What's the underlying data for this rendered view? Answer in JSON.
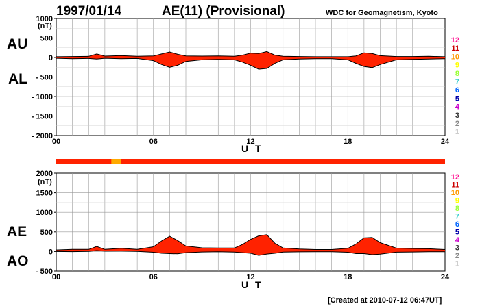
{
  "header": {
    "date": "1997/01/14",
    "title": "AE(11) (Provisional)",
    "source": "WDC for Geomagnetism, Kyoto"
  },
  "footer": {
    "created": "[Created at 2010-07-12 06:47UT]"
  },
  "station_legend": {
    "labels": [
      "12",
      "11",
      "10",
      "9",
      "8",
      "7",
      "6",
      "5",
      "4",
      "3",
      "2",
      "1"
    ],
    "colors": [
      "#ff1493",
      "#cc0000",
      "#ff9900",
      "#ffff00",
      "#99ff33",
      "#33cccc",
      "#0066ff",
      "#0000aa",
      "#cc00cc",
      "#333333",
      "#888888",
      "#cccccc"
    ]
  },
  "station_bar": {
    "main_color": "#ff2200",
    "alt_color": "#ffaa00",
    "alt_segment_hours": [
      3.4,
      4.0
    ]
  },
  "colors": {
    "fill": "#ff2200",
    "line": "#000000",
    "grid": "#999999"
  },
  "chart_data": [
    {
      "type": "area",
      "name": "AU/AL",
      "upper_label": "AU",
      "lower_label": "AL",
      "xlabel": "U T",
      "xlim": [
        0,
        24
      ],
      "xticks": [
        0,
        6,
        12,
        18,
        24
      ],
      "xtick_labels": [
        "00",
        "06",
        "12",
        "18",
        "24"
      ],
      "ylim": [
        -2000,
        1000
      ],
      "yticks": [
        1000,
        500,
        0,
        -500,
        -1000,
        -1500,
        -2000
      ],
      "ytick_labels": [
        "1000",
        "500",
        "0",
        "- 500",
        "- 1000",
        "- 1500",
        "- 2000"
      ],
      "unit": "(nT)",
      "grid": true,
      "series": [
        {
          "name": "AU",
          "x": [
            0,
            1,
            2,
            2.5,
            3,
            4,
            5,
            6,
            6.5,
            7,
            7.5,
            8,
            9,
            10,
            11,
            11.5,
            12,
            12.5,
            13,
            13.5,
            14,
            15,
            16,
            17,
            18,
            18.5,
            19,
            19.5,
            20,
            21,
            22,
            23,
            24
          ],
          "values": [
            20,
            25,
            30,
            90,
            35,
            50,
            30,
            40,
            90,
            140,
            80,
            40,
            35,
            40,
            30,
            60,
            110,
            100,
            150,
            60,
            30,
            25,
            20,
            20,
            20,
            40,
            120,
            100,
            45,
            25,
            25,
            30,
            20
          ]
        },
        {
          "name": "AL",
          "x": [
            0,
            1,
            2,
            2.5,
            3,
            4,
            5,
            6,
            6.5,
            7,
            7.5,
            8,
            9,
            10,
            11,
            11.5,
            12,
            12.5,
            13,
            13.5,
            14,
            15,
            16,
            17,
            18,
            18.5,
            19,
            19.5,
            20,
            21,
            22,
            23,
            24
          ],
          "values": [
            -20,
            -30,
            -25,
            -40,
            -20,
            -30,
            -25,
            -80,
            -180,
            -250,
            -200,
            -100,
            -60,
            -50,
            -60,
            -120,
            -200,
            -300,
            -280,
            -150,
            -60,
            -40,
            -30,
            -30,
            -60,
            -150,
            -230,
            -260,
            -180,
            -60,
            -50,
            -40,
            -30
          ]
        }
      ]
    },
    {
      "type": "area",
      "name": "AE/AO",
      "upper_label": "AE",
      "lower_label": "AO",
      "xlabel": "U T",
      "xlim": [
        0,
        24
      ],
      "xticks": [
        0,
        6,
        12,
        18,
        24
      ],
      "xtick_labels": [
        "00",
        "06",
        "12",
        "18",
        "24"
      ],
      "ylim": [
        -500,
        2000
      ],
      "yticks": [
        2000,
        1500,
        1000,
        500,
        0,
        -500
      ],
      "ytick_labels": [
        "2000",
        "1500",
        "1000",
        "500",
        "0",
        "- 500"
      ],
      "unit": "(nT)",
      "grid": true,
      "series": [
        {
          "name": "AE",
          "x": [
            0,
            1,
            2,
            2.5,
            3,
            4,
            5,
            6,
            6.5,
            7,
            7.5,
            8,
            9,
            10,
            11,
            11.5,
            12,
            12.5,
            13,
            13.5,
            14,
            15,
            16,
            17,
            18,
            18.5,
            19,
            19.5,
            20,
            21,
            22,
            23,
            24
          ],
          "values": [
            40,
            55,
            55,
            130,
            55,
            80,
            55,
            120,
            270,
            390,
            280,
            140,
            95,
            90,
            90,
            180,
            310,
            400,
            430,
            210,
            90,
            65,
            50,
            50,
            80,
            190,
            350,
            360,
            225,
            85,
            75,
            70,
            50
          ]
        },
        {
          "name": "AO",
          "x": [
            0,
            1,
            2,
            2.5,
            3,
            4,
            5,
            6,
            6.5,
            7,
            7.5,
            8,
            9,
            10,
            11,
            11.5,
            12,
            12.5,
            13,
            13.5,
            14,
            15,
            16,
            17,
            18,
            18.5,
            19,
            19.5,
            20,
            21,
            22,
            23,
            24
          ],
          "values": [
            0,
            -3,
            3,
            25,
            8,
            10,
            3,
            -20,
            -45,
            -55,
            -60,
            -30,
            -13,
            -5,
            -15,
            -30,
            -45,
            -100,
            -65,
            -45,
            -15,
            -8,
            -5,
            -5,
            -20,
            -55,
            -55,
            -80,
            -68,
            -18,
            -13,
            -5,
            -5
          ]
        }
      ]
    }
  ]
}
